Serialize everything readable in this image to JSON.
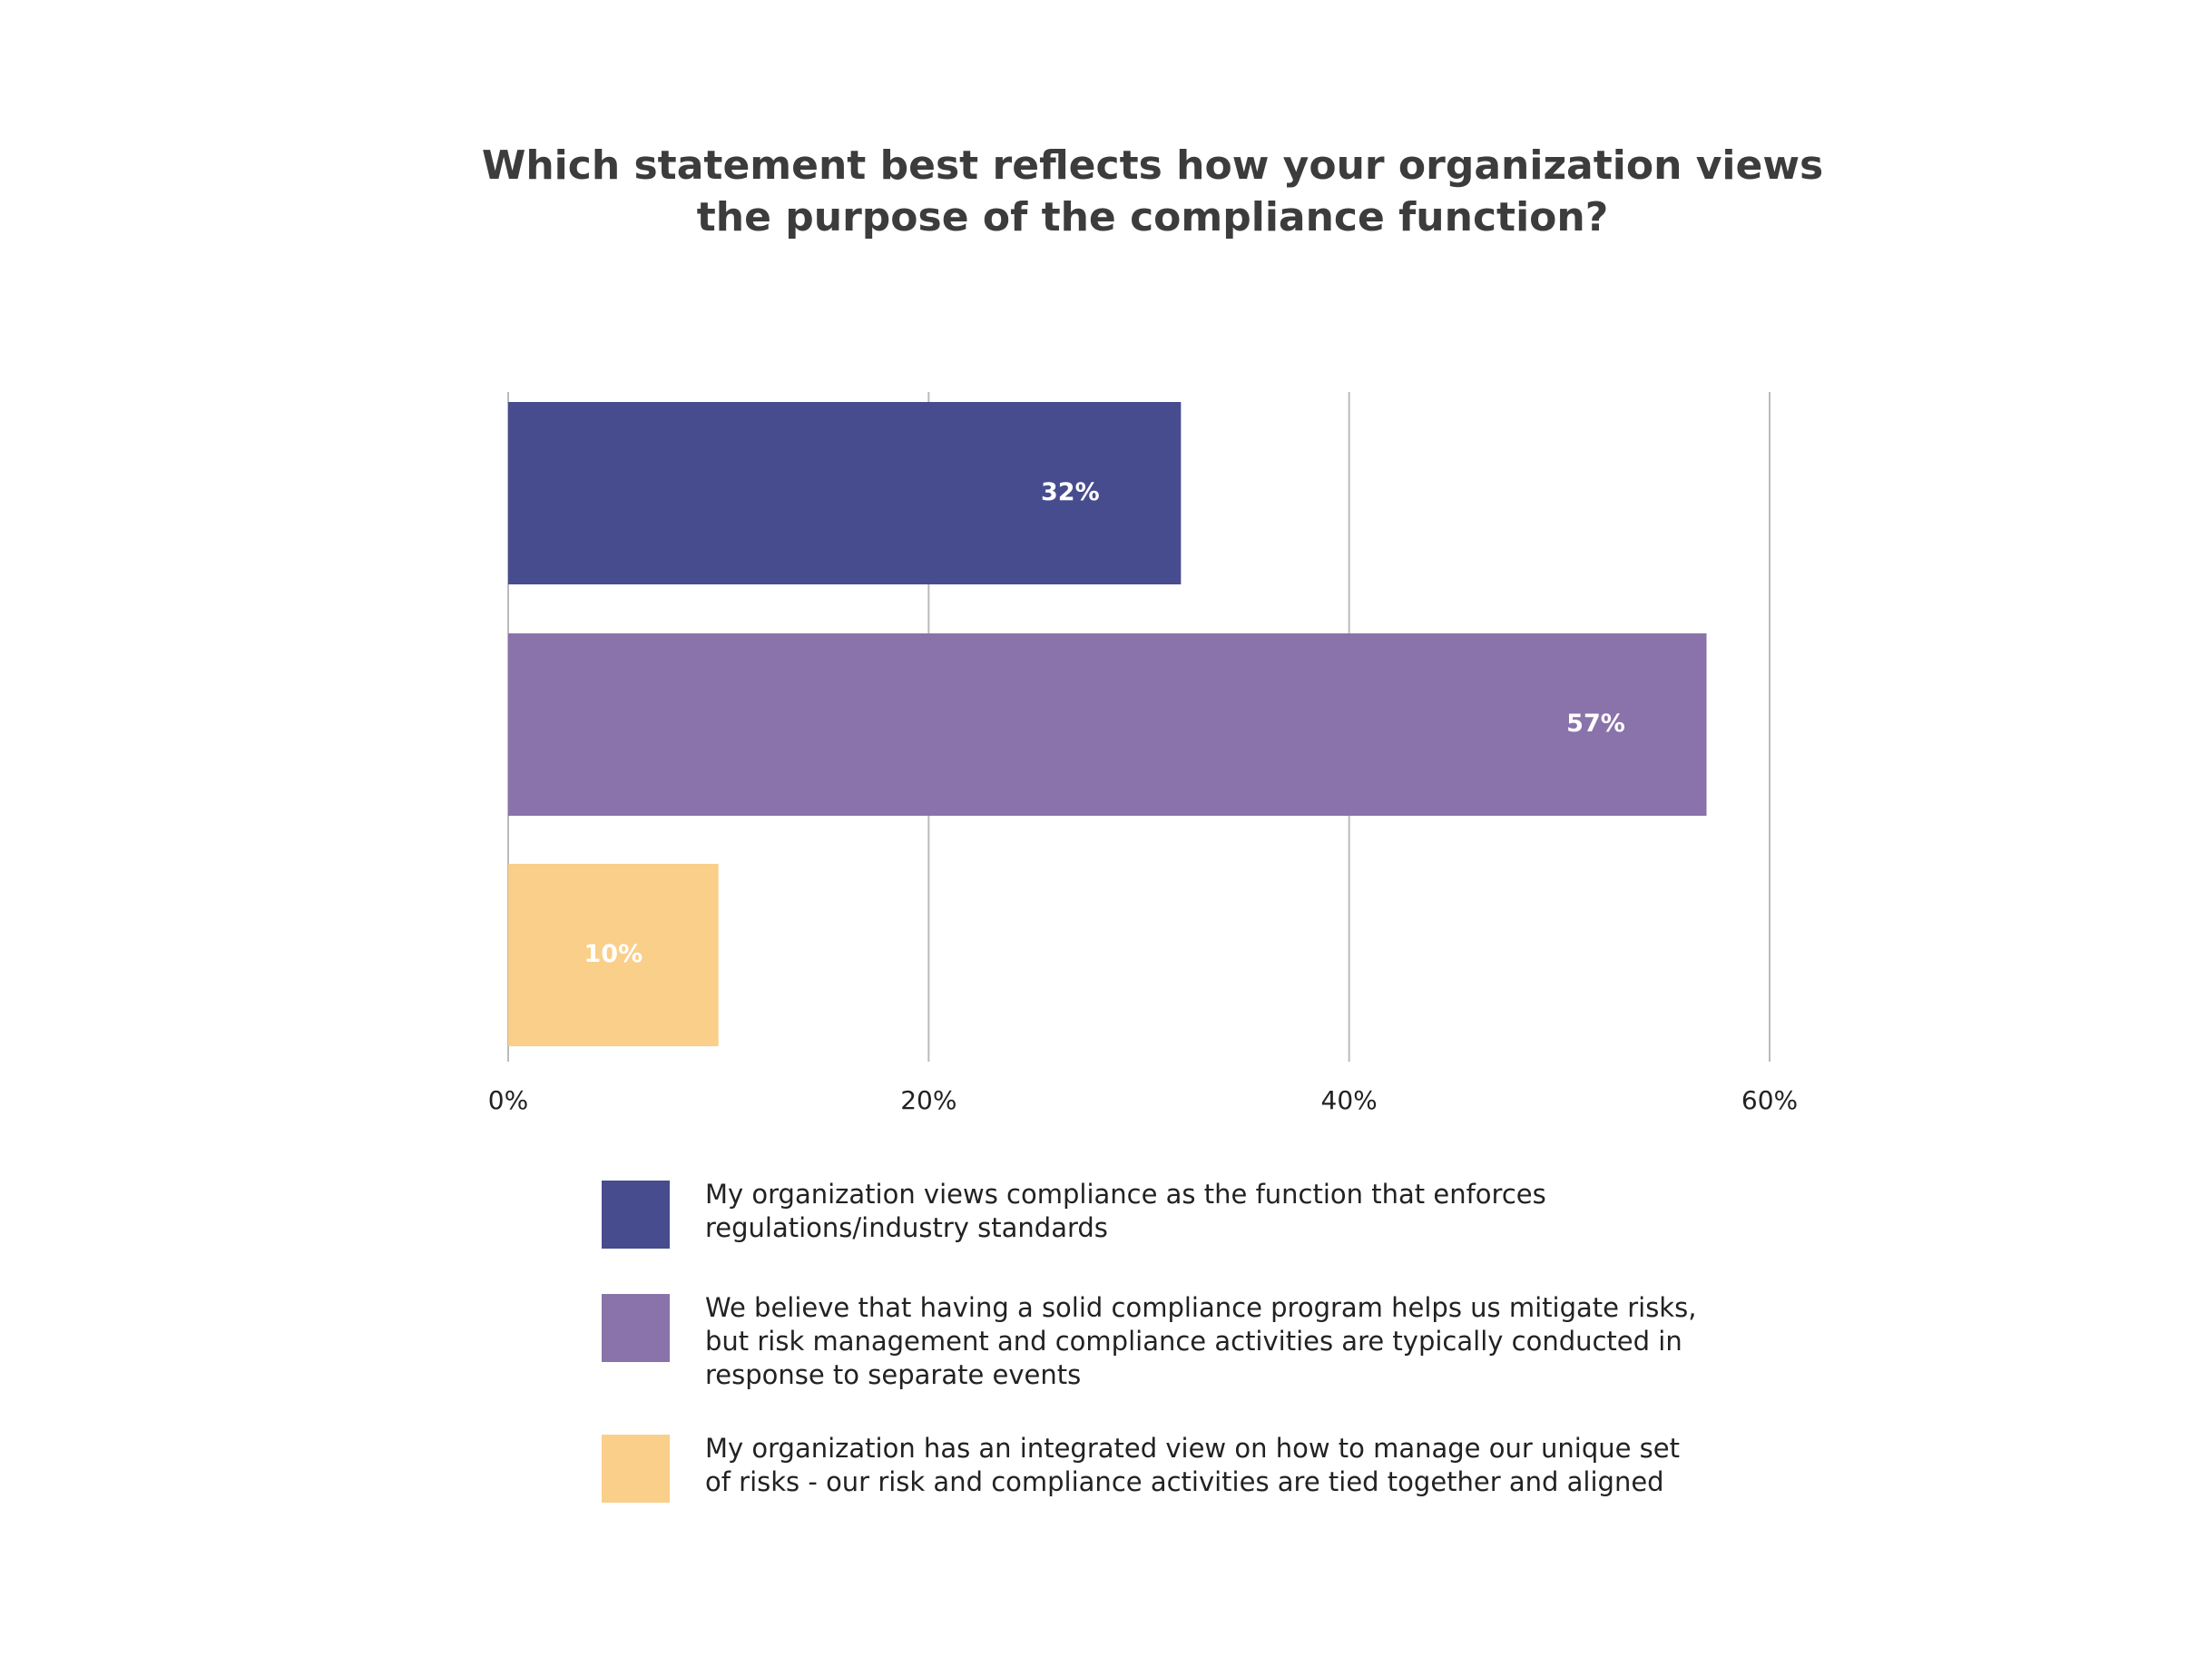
{
  "chart_data": {
    "type": "bar",
    "orientation": "horizontal",
    "title": "Which statement best reflects how your organization views the purpose of the compliance function?",
    "categories": [
      "My organization views compliance as the function that enforces regulations/industry standards",
      "We believe that having a solid compliance program helps us mitigate risks, but risk management and compliance activities are typically conducted in response to separate events",
      "My organization has an integrated view on how to manage our unique set of risks - our risk and compliance activities are tied together and aligned"
    ],
    "values": [
      32,
      57,
      10
    ],
    "value_labels": [
      "32%",
      "57%",
      "10%"
    ],
    "colors": [
      "#474c8e",
      "#8a72aa",
      "#f9cf8a"
    ],
    "xlim": [
      0,
      60
    ],
    "xticks": [
      {
        "value": 0,
        "label": "0%"
      },
      {
        "value": 20,
        "label": "20%"
      },
      {
        "value": 40,
        "label": "40%"
      },
      {
        "value": 60,
        "label": "60%"
      }
    ],
    "grid": true
  }
}
